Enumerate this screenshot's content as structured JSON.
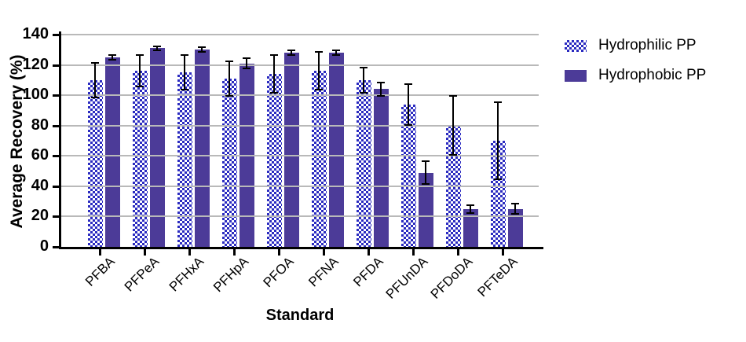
{
  "chart_data": {
    "type": "bar",
    "title": "",
    "xlabel": "Standard",
    "ylabel": "Average Recovery (%)",
    "ylim": [
      0,
      140
    ],
    "yticks": [
      0,
      20,
      40,
      60,
      80,
      100,
      120,
      140
    ],
    "grid": true,
    "legend_position": "right",
    "categories": [
      "PFBA",
      "PFPeA",
      "PFHxA",
      "PFHpA",
      "PFOA",
      "PFNA",
      "PFDA",
      "PFUnDA",
      "PFDoDA",
      "PFTeDA"
    ],
    "series": [
      {
        "name": "Hydrophilic PP",
        "style": "checker",
        "color": "#2a2ac0",
        "values": [
          110,
          116,
          115,
          111,
          114,
          116,
          110,
          94,
          80,
          70
        ],
        "errors": [
          12,
          11,
          12,
          12,
          13,
          13,
          9,
          14,
          20,
          26
        ]
      },
      {
        "name": "Hydrophobic PP",
        "style": "solid",
        "color": "#4c3b98",
        "values": [
          125,
          131,
          130,
          121,
          128,
          128,
          104,
          49,
          25,
          25
        ],
        "errors": [
          2,
          2,
          2,
          4,
          2,
          2,
          5,
          8,
          3,
          4
        ]
      }
    ]
  },
  "colors": {
    "hydrophilic_pattern": "#2a2ac0",
    "hydrophobic_solid": "#4c3b98",
    "gridline": "#b9b9b9",
    "axis": "#000000",
    "error_bar": "#000000"
  }
}
